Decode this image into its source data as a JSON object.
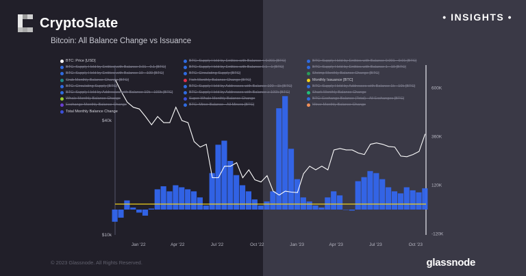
{
  "header": {
    "brand": "CryptoSlate",
    "subtitle": "Bitcoin: All Balance Change vs Issuance",
    "badge": "• INSIGHTS •"
  },
  "footer": {
    "copyright": "© 2023 Glassnode. All Rights Reserved.",
    "logo": "glassnode"
  },
  "legend": {
    "columns": [
      [
        {
          "label": "BTC: Price [USD]",
          "color": "#ffffff",
          "on": true
        },
        {
          "label": "BTC: Supply Held by Entities with Balance 0.01 - 0.1 [BTC]",
          "color": "#2f6be0",
          "on": false
        },
        {
          "label": "BTC: Supply Held by Entities with Balance 10 - 100 [BTC]",
          "color": "#2f6be0",
          "on": false
        },
        {
          "label": "Crab Monthly Balance Change [BTC]",
          "color": "#1f8a8a",
          "on": false
        },
        {
          "label": "BTC: Circulating Supply [BTC]",
          "color": "#2f6be0",
          "on": false
        },
        {
          "label": "BTC: Supply Held by Addresses with Balance 10k - 100k [BTC]",
          "color": "#2f6be0",
          "on": false
        },
        {
          "label": "Whale Monthly Balance Change",
          "color": "#9acd32",
          "on": false
        },
        {
          "label": "Exchange Monthly Balance Change",
          "color": "#6a3fd0",
          "on": false
        },
        {
          "label": "Total Monthly Balance Change",
          "color": "#3b4fd8",
          "on": true
        }
      ],
      [
        {
          "label": "BTC: Supply Held by Entities with Balance < 0.001 [BTC]",
          "color": "#2f6be0",
          "on": false
        },
        {
          "label": "BTC: Supply Held by Entities with Balance 0.1 - 1 [BTC]",
          "color": "#2f6be0",
          "on": false
        },
        {
          "label": "BTC: Circulating Supply [BTC]",
          "color": "#2f6be0",
          "on": false
        },
        {
          "label": "Fish Monthly Balance Change [BTC]",
          "color": "#e0304a",
          "on": false
        },
        {
          "label": "BTC: Supply Held by Addresses with Balance 100 - 1k [BTC]",
          "color": "#2f6be0",
          "on": false
        },
        {
          "label": "BTC: Supply Held by Addresses with Balance ≥ 100k [BTC]",
          "color": "#2f6be0",
          "on": false
        },
        {
          "label": "Super Whale Monthly Balance Change",
          "color": "#3b4fd8",
          "on": false
        },
        {
          "label": "BTC: Miner Balance - All Miners [BTC]",
          "color": "#2f6be0",
          "on": false
        }
      ],
      [
        {
          "label": "BTC: Supply Held by Entities with Balance 0.001 - 0.01 [BTC]",
          "color": "#2f6be0",
          "on": false
        },
        {
          "label": "BTC: Supply Held by Entities with Balance 1 - 10 [BTC]",
          "color": "#2f6be0",
          "on": false
        },
        {
          "label": "Shrimp Monthly Balance Change [BTC]",
          "color": "#2a9a5a",
          "on": false
        },
        {
          "label": "Monthly Issuance [BTC]",
          "color": "#f2d21b",
          "on": true
        },
        {
          "label": "BTC: Supply Held by Addresses with Balance 1k - 10k [BTC]",
          "color": "#2f6be0",
          "on": false
        },
        {
          "label": "Shark Monthly Balance Change",
          "color": "#22c07a",
          "on": false
        },
        {
          "label": "BTC: Exchange Balance (Total) - All Exchanges [BTC]",
          "color": "#2f6be0",
          "on": false
        },
        {
          "label": "Miner Monthly Balance Change",
          "color": "#f0905a",
          "on": false
        }
      ]
    ]
  },
  "chart_data": {
    "type": "bar+line",
    "title": "Bitcoin: All Balance Change vs Issuance",
    "x_ticks": [
      "Jan '22",
      "Apr '22",
      "Jul '22",
      "Oct '22",
      "Jan '23",
      "Apr '23",
      "Jul '23",
      "Oct '23"
    ],
    "x_tick_dates": [
      "2022-01-01",
      "2022-04-01",
      "2022-07-01",
      "2022-10-01",
      "2023-01-01",
      "2023-04-01",
      "2023-07-01",
      "2023-10-01"
    ],
    "xlim": [
      "2021-11-08",
      "2023-10-25"
    ],
    "left_axis": {
      "scale": "log",
      "ticks": [
        "$10k",
        "$40k"
      ],
      "tick_values": [
        10000,
        40000
      ]
    },
    "right_axis": {
      "ticks": [
        "-120K",
        "120K",
        "360K",
        "600K"
      ],
      "tick_values": [
        -120000,
        120000,
        360000,
        600000
      ],
      "ylim": [
        -120000,
        720000
      ]
    },
    "colors": {
      "price": "#ffffff",
      "balance": "#3366ee",
      "issuance": "#f2d21b"
    },
    "issuance_value": 27000,
    "dates": [
      "2021-11-08",
      "2021-11-22",
      "2021-12-06",
      "2021-12-20",
      "2022-01-03",
      "2022-01-17",
      "2022-01-31",
      "2022-02-14",
      "2022-02-28",
      "2022-03-14",
      "2022-03-28",
      "2022-04-11",
      "2022-04-25",
      "2022-05-09",
      "2022-05-23",
      "2022-06-06",
      "2022-06-20",
      "2022-07-04",
      "2022-07-18",
      "2022-08-01",
      "2022-08-15",
      "2022-08-29",
      "2022-09-12",
      "2022-09-26",
      "2022-10-10",
      "2022-10-24",
      "2022-11-07",
      "2022-11-21",
      "2022-12-05",
      "2022-12-19",
      "2023-01-02",
      "2023-01-16",
      "2023-01-30",
      "2023-02-13",
      "2023-02-27",
      "2023-03-13",
      "2023-03-27",
      "2023-04-10",
      "2023-04-24",
      "2023-05-08",
      "2023-05-22",
      "2023-06-05",
      "2023-06-19",
      "2023-07-03",
      "2023-07-17",
      "2023-07-31",
      "2023-08-14",
      "2023-08-28",
      "2023-09-11",
      "2023-09-25",
      "2023-10-09",
      "2023-10-23"
    ],
    "series": [
      {
        "name": "BTC: Price [USD]",
        "type": "line",
        "values": [
          66000,
          57000,
          50000,
          47000,
          46000,
          42000,
          38000,
          42000,
          39000,
          39000,
          47000,
          40000,
          39000,
          31000,
          29000,
          30000,
          20000,
          20000,
          23000,
          23000,
          24000,
          20000,
          22000,
          19500,
          19000,
          20500,
          17000,
          16200,
          17000,
          16800,
          16700,
          21000,
          23000,
          22000,
          23000,
          22000,
          28000,
          28500,
          28000,
          28000,
          27000,
          26500,
          30000,
          30500,
          30000,
          29200,
          29000,
          26000,
          25800,
          26500,
          27500,
          34000
        ]
      },
      {
        "name": "Total Monthly Balance Change",
        "type": "bar",
        "values": [
          -60000,
          -40000,
          45000,
          10000,
          -15000,
          -30000,
          5000,
          100000,
          115000,
          90000,
          120000,
          110000,
          100000,
          90000,
          60000,
          20000,
          180000,
          320000,
          340000,
          240000,
          170000,
          120000,
          90000,
          50000,
          20000,
          40000,
          90000,
          500000,
          560000,
          300000,
          150000,
          60000,
          40000,
          20000,
          10000,
          60000,
          90000,
          70000,
          0,
          -5000,
          140000,
          160000,
          190000,
          180000,
          150000,
          110000,
          90000,
          80000,
          110000,
          95000,
          85000,
          105000
        ]
      }
    ]
  }
}
